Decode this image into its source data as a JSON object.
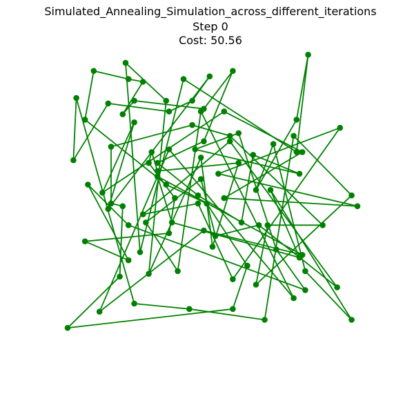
{
  "chart_data": {
    "type": "line",
    "title": "Simulated_Annealing_Simulation_across_different_iterations",
    "subtitle_step": "Step 0",
    "subtitle_cost": "Cost: 50.56",
    "xlim": [
      0,
      100
    ],
    "ylim": [
      0,
      100
    ],
    "grid": false,
    "axes_visible": false,
    "series": [
      {
        "color": "#008000",
        "marker": "circle",
        "closed": true,
        "points": [
          [
            49,
            96
          ],
          [
            43,
            87
          ],
          [
            35,
            83
          ],
          [
            14,
            86
          ],
          [
            2,
            65
          ],
          [
            3,
            88
          ],
          [
            23,
            12
          ],
          [
            42,
            10
          ],
          [
            68,
            6
          ],
          [
            78,
            74
          ],
          [
            98,
            52
          ],
          [
            65,
            19
          ],
          [
            69,
            41
          ],
          [
            88,
            41
          ],
          [
            56,
            74
          ],
          [
            43,
            78
          ],
          [
            15,
            70
          ],
          [
            15,
            49
          ],
          [
            19,
            48
          ],
          [
            18,
            22
          ],
          [
            0,
            3
          ],
          [
            57,
            10
          ],
          [
            62,
            26
          ],
          [
            48,
            49
          ],
          [
            34,
            56
          ],
          [
            6,
            80
          ],
          [
            9,
            98
          ],
          [
            21,
            95
          ],
          [
            26,
            94
          ],
          [
            19,
            82
          ],
          [
            23,
            87
          ],
          [
            47,
            84
          ],
          [
            57,
            98
          ],
          [
            47,
            72
          ],
          [
            31,
            64
          ],
          [
            45,
            52
          ],
          [
            60,
            42
          ],
          [
            64,
            67
          ],
          [
            80,
            60
          ],
          [
            44,
            69
          ],
          [
            59,
            75
          ],
          [
            72,
            32
          ],
          [
            82,
            17
          ],
          [
            21,
            41
          ],
          [
            7,
            56
          ],
          [
            21,
            28
          ],
          [
            6,
            35
          ],
          [
            35,
            38
          ],
          [
            37,
            51
          ],
          [
            28,
            64
          ],
          [
            29,
            68
          ],
          [
            31,
            61
          ],
          [
            59,
            64
          ],
          [
            50,
            33
          ],
          [
            46,
            66
          ],
          [
            28,
            23
          ],
          [
            34,
            87
          ],
          [
            20,
            101
          ],
          [
            25,
            31
          ],
          [
            40,
            95
          ],
          [
            79,
            68
          ],
          [
            83,
            104
          ],
          [
            79,
            80
          ],
          [
            65,
            54
          ],
          [
            71,
            71
          ],
          [
            82,
            24
          ],
          [
            98,
            6
          ],
          [
            70,
            54
          ],
          [
            80,
            29
          ],
          [
            36,
            42
          ],
          [
            31,
            59
          ],
          [
            81,
            30
          ],
          [
            47,
            39
          ],
          [
            11,
            9
          ],
          [
            35,
            69
          ],
          [
            78,
            14
          ],
          [
            46,
            83
          ],
          [
            38,
            24
          ],
          [
            27,
            42
          ],
          [
            46,
            58
          ],
          [
            51,
            37
          ],
          [
            66,
            41
          ],
          [
            93,
            18
          ],
          [
            56,
            72
          ],
          [
            26,
            45
          ],
          [
            45,
            49
          ],
          [
            57,
            21
          ],
          [
            94,
            77
          ],
          [
            52,
            60
          ],
          [
            100,
            48
          ],
          [
            54,
            51
          ],
          [
            81,
            68
          ],
          [
            54,
            83
          ],
          [
            12,
            53
          ],
          [
            23,
            79
          ],
          [
            14,
            47
          ]
        ]
      }
    ]
  }
}
